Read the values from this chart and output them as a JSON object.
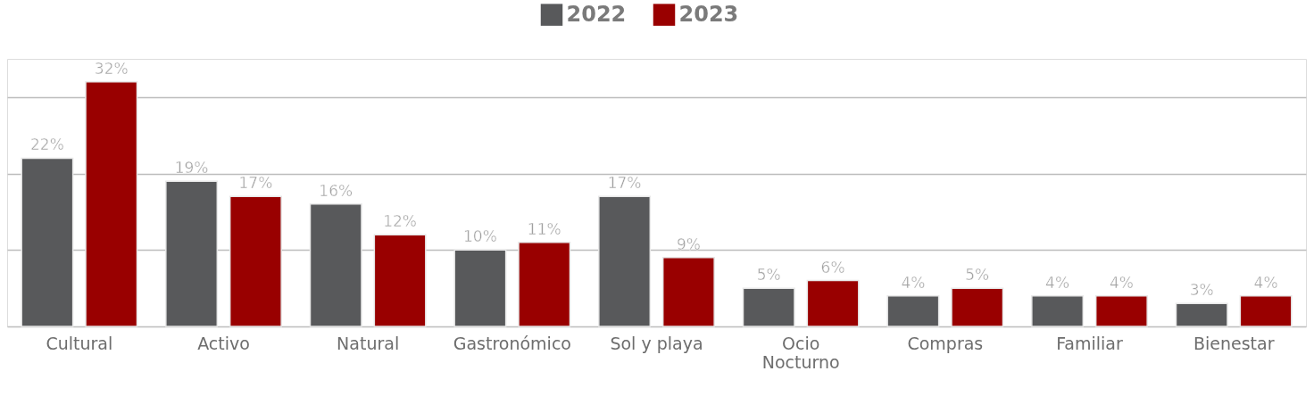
{
  "chart_data": {
    "type": "bar",
    "categories": [
      "Cultural",
      "Activo",
      "Natural",
      "Gastronómico",
      "Sol y playa",
      "Ocio Nocturno",
      "Compras",
      "Familiar",
      "Bienestar"
    ],
    "series": [
      {
        "name": "2022",
        "color": "#58595b",
        "values": [
          22,
          19,
          16,
          10,
          17,
          5,
          4,
          4,
          3
        ],
        "value_labels": [
          "22%",
          "19%",
          "16%",
          "10%",
          "17%",
          "5%",
          "4%",
          "4%",
          "3%"
        ]
      },
      {
        "name": "2023",
        "color": "#990000",
        "values": [
          32,
          17,
          12,
          11,
          9,
          6,
          5,
          4,
          4
        ],
        "value_labels": [
          "32%",
          "17%",
          "12%",
          "11%",
          "9%",
          "6%",
          "5%",
          "4%",
          "4%"
        ]
      }
    ],
    "tick_labels": "x",
    "grid": "y",
    "legend": "top"
  }
}
